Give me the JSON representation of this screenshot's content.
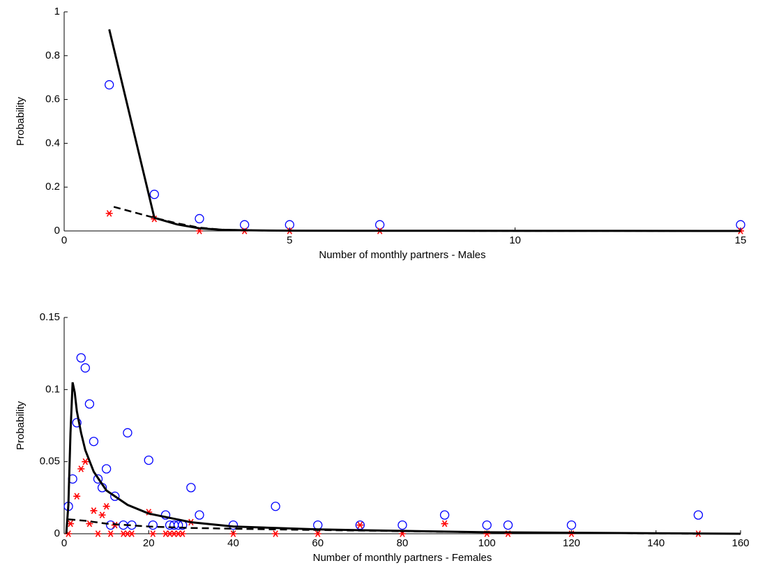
{
  "chart_data": [
    {
      "type": "scatter",
      "xlabel": "Number of monthly partners - Males",
      "ylabel": "Probability",
      "xlim": [
        0,
        15
      ],
      "ylim": [
        0,
        1
      ],
      "xticks": [
        0,
        5,
        10,
        15
      ],
      "yticks": [
        0,
        0.2,
        0.4,
        0.6,
        0.8,
        1
      ],
      "series": [
        {
          "style": "circle",
          "color": "#0000ff",
          "x": [
            1,
            2,
            3,
            4,
            5,
            7,
            15
          ],
          "values": [
            0.667,
            0.167,
            0.056,
            0.028,
            0.028,
            0.028,
            0.028
          ]
        },
        {
          "style": "star",
          "color": "#ff0000",
          "x": [
            1,
            2,
            3,
            4,
            5,
            7,
            15
          ],
          "values": [
            0.08,
            0.055,
            0,
            0,
            0,
            0,
            0
          ]
        },
        {
          "style": "solid",
          "color": "#000000",
          "x": [
            1,
            2,
            2.5,
            3,
            3.5,
            4,
            5,
            15
          ],
          "values": [
            0.92,
            0.06,
            0.03,
            0.012,
            0.005,
            0.003,
            0.001,
            0
          ]
        },
        {
          "style": "dashed",
          "color": "#000000",
          "x": [
            1.1,
            2,
            2.5,
            3,
            3.5,
            4,
            5,
            15
          ],
          "values": [
            0.11,
            0.06,
            0.035,
            0.015,
            0.006,
            0.003,
            0.001,
            0
          ]
        }
      ]
    },
    {
      "type": "scatter",
      "xlabel": "Number of monthly partners - Females",
      "ylabel": "Probability",
      "xlim": [
        0,
        160
      ],
      "ylim": [
        0,
        0.15
      ],
      "xticks": [
        0,
        20,
        40,
        60,
        80,
        100,
        120,
        140,
        160
      ],
      "yticks": [
        0,
        0.05,
        0.1,
        0.15
      ],
      "series": [
        {
          "style": "circle",
          "color": "#0000ff",
          "x": [
            1,
            2,
            3,
            4,
            5,
            6,
            7,
            8,
            9,
            10,
            11,
            12,
            14,
            15,
            16,
            20,
            21,
            24,
            25,
            26,
            27,
            28,
            30,
            32,
            40,
            50,
            60,
            70,
            80,
            90,
            100,
            105,
            120,
            150
          ],
          "values": [
            0.019,
            0.038,
            0.077,
            0.122,
            0.115,
            0.09,
            0.064,
            0.038,
            0.032,
            0.045,
            0.006,
            0.026,
            0.006,
            0.07,
            0.006,
            0.051,
            0.006,
            0.013,
            0.006,
            0.006,
            0.006,
            0.006,
            0.032,
            0.013,
            0.006,
            0.019,
            0.006,
            0.006,
            0.006,
            0.013,
            0.006,
            0.006,
            0.006,
            0.013
          ]
        },
        {
          "style": "star",
          "color": "#ff0000",
          "x": [
            1,
            1.5,
            3,
            4,
            5,
            6,
            7,
            8,
            9,
            10,
            11,
            12,
            14,
            15,
            16,
            20,
            21,
            24,
            25,
            26,
            27,
            28,
            30,
            40,
            50,
            60,
            70,
            80,
            90,
            100,
            105,
            120,
            150
          ],
          "values": [
            0,
            0.007,
            0.026,
            0.045,
            0.05,
            0.007,
            0.016,
            0,
            0.013,
            0.019,
            0,
            0.006,
            0,
            0,
            0,
            0.015,
            0,
            0,
            0,
            0,
            0,
            0,
            0.008,
            0,
            0,
            0,
            0.006,
            0,
            0.007,
            0,
            0,
            0,
            0
          ]
        },
        {
          "style": "solid",
          "color": "#000000",
          "x": [
            0.5,
            1,
            1.5,
            2,
            2.5,
            3,
            4,
            5,
            7,
            10,
            15,
            20,
            30,
            40,
            60,
            100,
            160
          ],
          "values": [
            0,
            0.02,
            0.07,
            0.105,
            0.098,
            0.085,
            0.07,
            0.058,
            0.043,
            0.03,
            0.02,
            0.014,
            0.008,
            0.005,
            0.003,
            0.001,
            0
          ]
        },
        {
          "style": "dashed",
          "color": "#000000",
          "x": [
            1,
            5,
            10,
            20,
            30,
            50,
            100,
            150
          ],
          "values": [
            0.01,
            0.009,
            0.007,
            0.005,
            0.004,
            0.003,
            0.001,
            0
          ]
        }
      ]
    }
  ]
}
